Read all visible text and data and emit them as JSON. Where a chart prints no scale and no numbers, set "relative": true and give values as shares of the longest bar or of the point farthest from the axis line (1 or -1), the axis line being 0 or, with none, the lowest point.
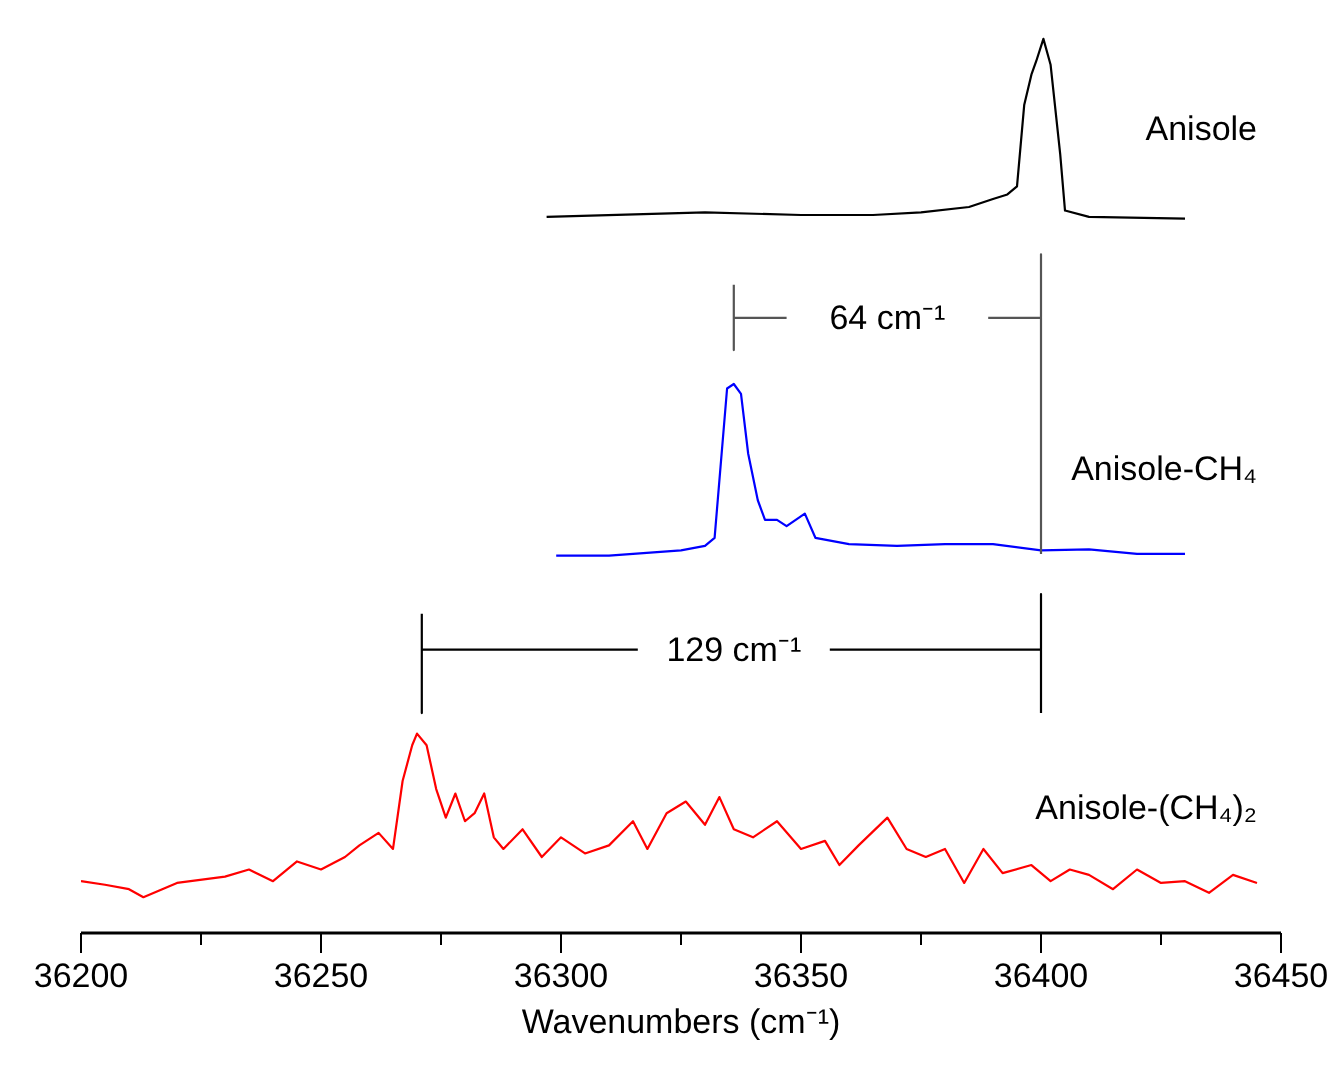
{
  "chart_data": {
    "type": "line",
    "relative": true,
    "xlabel": "Wavenumbers (cm⁻¹)",
    "xlim": [
      36200,
      36450
    ],
    "xticks": [
      36200,
      {
        "value": 36225,
        "label": null
      },
      36250,
      {
        "value": 36275,
        "label": null
      },
      36300,
      {
        "value": 36325,
        "label": null
      },
      36350,
      {
        "value": 36375,
        "label": null
      },
      36400,
      {
        "value": 36425,
        "label": null
      },
      36450
    ],
    "grid": false,
    "marker": "none",
    "line_style": "solid",
    "annotations": [
      "64 cm⁻¹",
      "129 cm⁻¹"
    ],
    "series": [
      {
        "name": "Anisole",
        "color": "#000000",
        "x": [
          36297,
          36330,
          36350,
          36365,
          36375,
          36385,
          36390,
          36393,
          36395,
          36396.5,
          36398,
          36399,
          36400.5,
          36402,
          36404,
          36405,
          36410,
          36430
        ],
        "values": [
          0.801,
          0.806,
          0.803,
          0.803,
          0.806,
          0.812,
          0.821,
          0.826,
          0.835,
          0.926,
          0.96,
          0.975,
          1.0,
          0.971,
          0.871,
          0.808,
          0.801,
          0.799
        ]
      },
      {
        "name": "Anisole-CH₄",
        "color": "#0000ff",
        "x": [
          36299,
          36310,
          36320,
          36325,
          36330,
          36332,
          36334.6,
          36336,
          36337.5,
          36339,
          36341,
          36342.5,
          36345,
          36347,
          36350.8,
          36353,
          36360,
          36370,
          36380,
          36390,
          36400,
          36410,
          36420,
          36430
        ],
        "values": [
          0.422,
          0.422,
          0.426,
          0.428,
          0.433,
          0.442,
          0.609,
          0.614,
          0.603,
          0.536,
          0.484,
          0.462,
          0.462,
          0.455,
          0.469,
          0.442,
          0.435,
          0.433,
          0.435,
          0.435,
          0.428,
          0.429,
          0.424,
          0.424
        ]
      },
      {
        "name": "Anisole-(CH₄)₂",
        "color": "#ff0000",
        "x": [
          36200,
          36205,
          36210,
          36213,
          36220,
          36230,
          36235,
          36240,
          36245,
          36250,
          36255,
          36258,
          36262,
          36265,
          36267,
          36269,
          36270,
          36272,
          36274,
          36276,
          36278,
          36280,
          36282,
          36284,
          36286,
          36288,
          36292,
          36296,
          36300,
          36305,
          36310,
          36315,
          36318,
          36322,
          36326,
          36330,
          36333,
          36336,
          36340,
          36345,
          36350,
          36355,
          36358,
          36362,
          36368,
          36372,
          36376,
          36380,
          36384,
          36388,
          36392,
          36398,
          36402,
          36406,
          36410,
          36415,
          36420,
          36425,
          36430,
          36435,
          36440,
          36445
        ],
        "values": [
          0.058,
          0.054,
          0.049,
          0.04,
          0.056,
          0.063,
          0.071,
          0.058,
          0.08,
          0.071,
          0.085,
          0.098,
          0.112,
          0.094,
          0.17,
          0.21,
          0.223,
          0.21,
          0.161,
          0.129,
          0.156,
          0.125,
          0.134,
          0.156,
          0.107,
          0.094,
          0.116,
          0.085,
          0.107,
          0.089,
          0.098,
          0.125,
          0.094,
          0.134,
          0.147,
          0.121,
          0.152,
          0.116,
          0.107,
          0.125,
          0.094,
          0.103,
          0.076,
          0.098,
          0.129,
          0.094,
          0.085,
          0.094,
          0.056,
          0.094,
          0.067,
          0.076,
          0.058,
          0.071,
          0.065,
          0.049,
          0.071,
          0.056,
          0.058,
          0.045,
          0.065,
          0.056
        ]
      },
      {
        "color": "#555555",
        "x": [
          36336,
          36336,
          36336,
          36347,
          36368,
          36389,
          36400,
          36400,
          36400
        ],
        "values": [
          0.725,
          0.652,
          0.688,
          0.688,
          null,
          0.688,
          0.688,
          0.759,
          0.424
        ]
      },
      {
        "color": "#000000",
        "x": [
          36271,
          36271,
          36271,
          36316,
          36336,
          36356,
          36400,
          36400,
          36400
        ],
        "values": [
          0.357,
          0.246,
          0.317,
          0.317,
          null,
          0.317,
          0.317,
          0.379,
          0.246
        ]
      }
    ]
  }
}
